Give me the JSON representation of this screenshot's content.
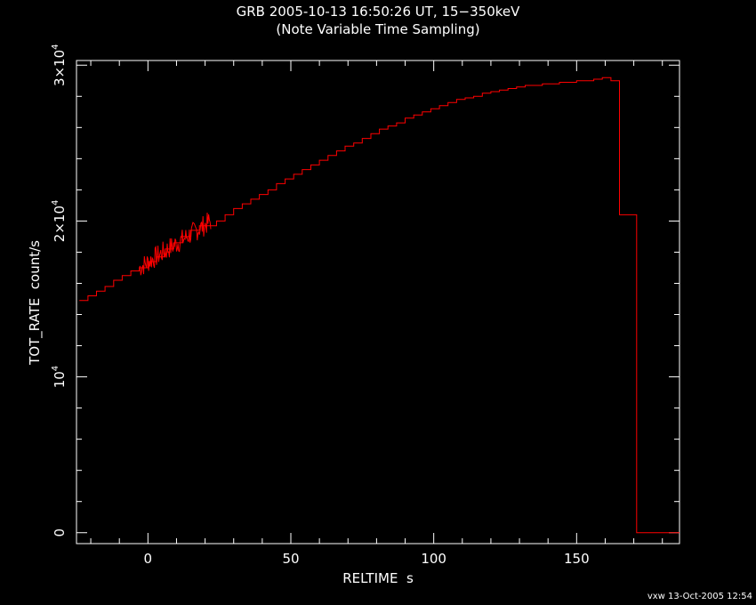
{
  "chart_data": {
    "type": "line",
    "title": "GRB 2005-10-13 16:50:26 UT, 15−350keV",
    "subtitle": "(Note Variable Time Sampling)",
    "xlabel": "RELTIME  s",
    "ylabel": "TOT_RATE  count/s",
    "xlim": [
      -25,
      186
    ],
    "ylim": [
      -700,
      30300
    ],
    "x_ticks": [
      0,
      50,
      100,
      150
    ],
    "x_tick_labels": [
      "0",
      "50",
      "100",
      "150"
    ],
    "y_ticks": [
      0,
      10000,
      20000,
      30000
    ],
    "y_tick_labels": [
      {
        "base": "0",
        "exp": ""
      },
      {
        "base": "10",
        "exp": "4"
      },
      {
        "base": "2×10",
        "exp": "4"
      },
      {
        "base": "3×10",
        "exp": "4"
      }
    ],
    "series": [
      {
        "color": "#ff0000",
        "style": "step",
        "x": [
          -24,
          -21,
          -18,
          -15,
          -12,
          -9,
          -6,
          -3,
          0,
          3,
          6,
          9,
          12,
          15,
          18,
          21,
          24,
          27,
          30,
          33,
          36,
          39,
          42,
          45,
          48,
          51,
          54,
          57,
          60,
          63,
          66,
          69,
          72,
          75,
          78,
          81,
          84,
          87,
          90,
          93,
          96,
          99,
          102,
          105,
          108,
          111,
          114,
          117,
          120,
          123,
          126,
          129,
          132,
          135,
          138,
          141,
          144,
          147,
          150,
          153,
          156,
          159,
          162,
          165,
          168,
          171,
          174,
          177,
          180,
          183
        ],
        "y": [
          14900,
          15200,
          15500,
          15800,
          16200,
          16500,
          16800,
          17000,
          17400,
          17700,
          18200,
          18600,
          19000,
          19400,
          19700,
          19700,
          20000,
          20400,
          20800,
          21100,
          21400,
          21700,
          22000,
          22400,
          22700,
          23000,
          23300,
          23600,
          23900,
          24200,
          24500,
          24800,
          25000,
          25300,
          25600,
          25900,
          26100,
          26300,
          26600,
          26800,
          27000,
          27200,
          27400,
          27600,
          27800,
          27900,
          28000,
          28200,
          28300,
          28400,
          28500,
          28600,
          28700,
          28700,
          28800,
          28800,
          28900,
          28900,
          29000,
          29000,
          29100,
          29200,
          29000,
          20400,
          20400,
          0,
          0,
          0,
          0,
          0
        ]
      }
    ],
    "grid": false,
    "legend": "none"
  },
  "footer": "vxw 13-Oct-2005 12:54"
}
